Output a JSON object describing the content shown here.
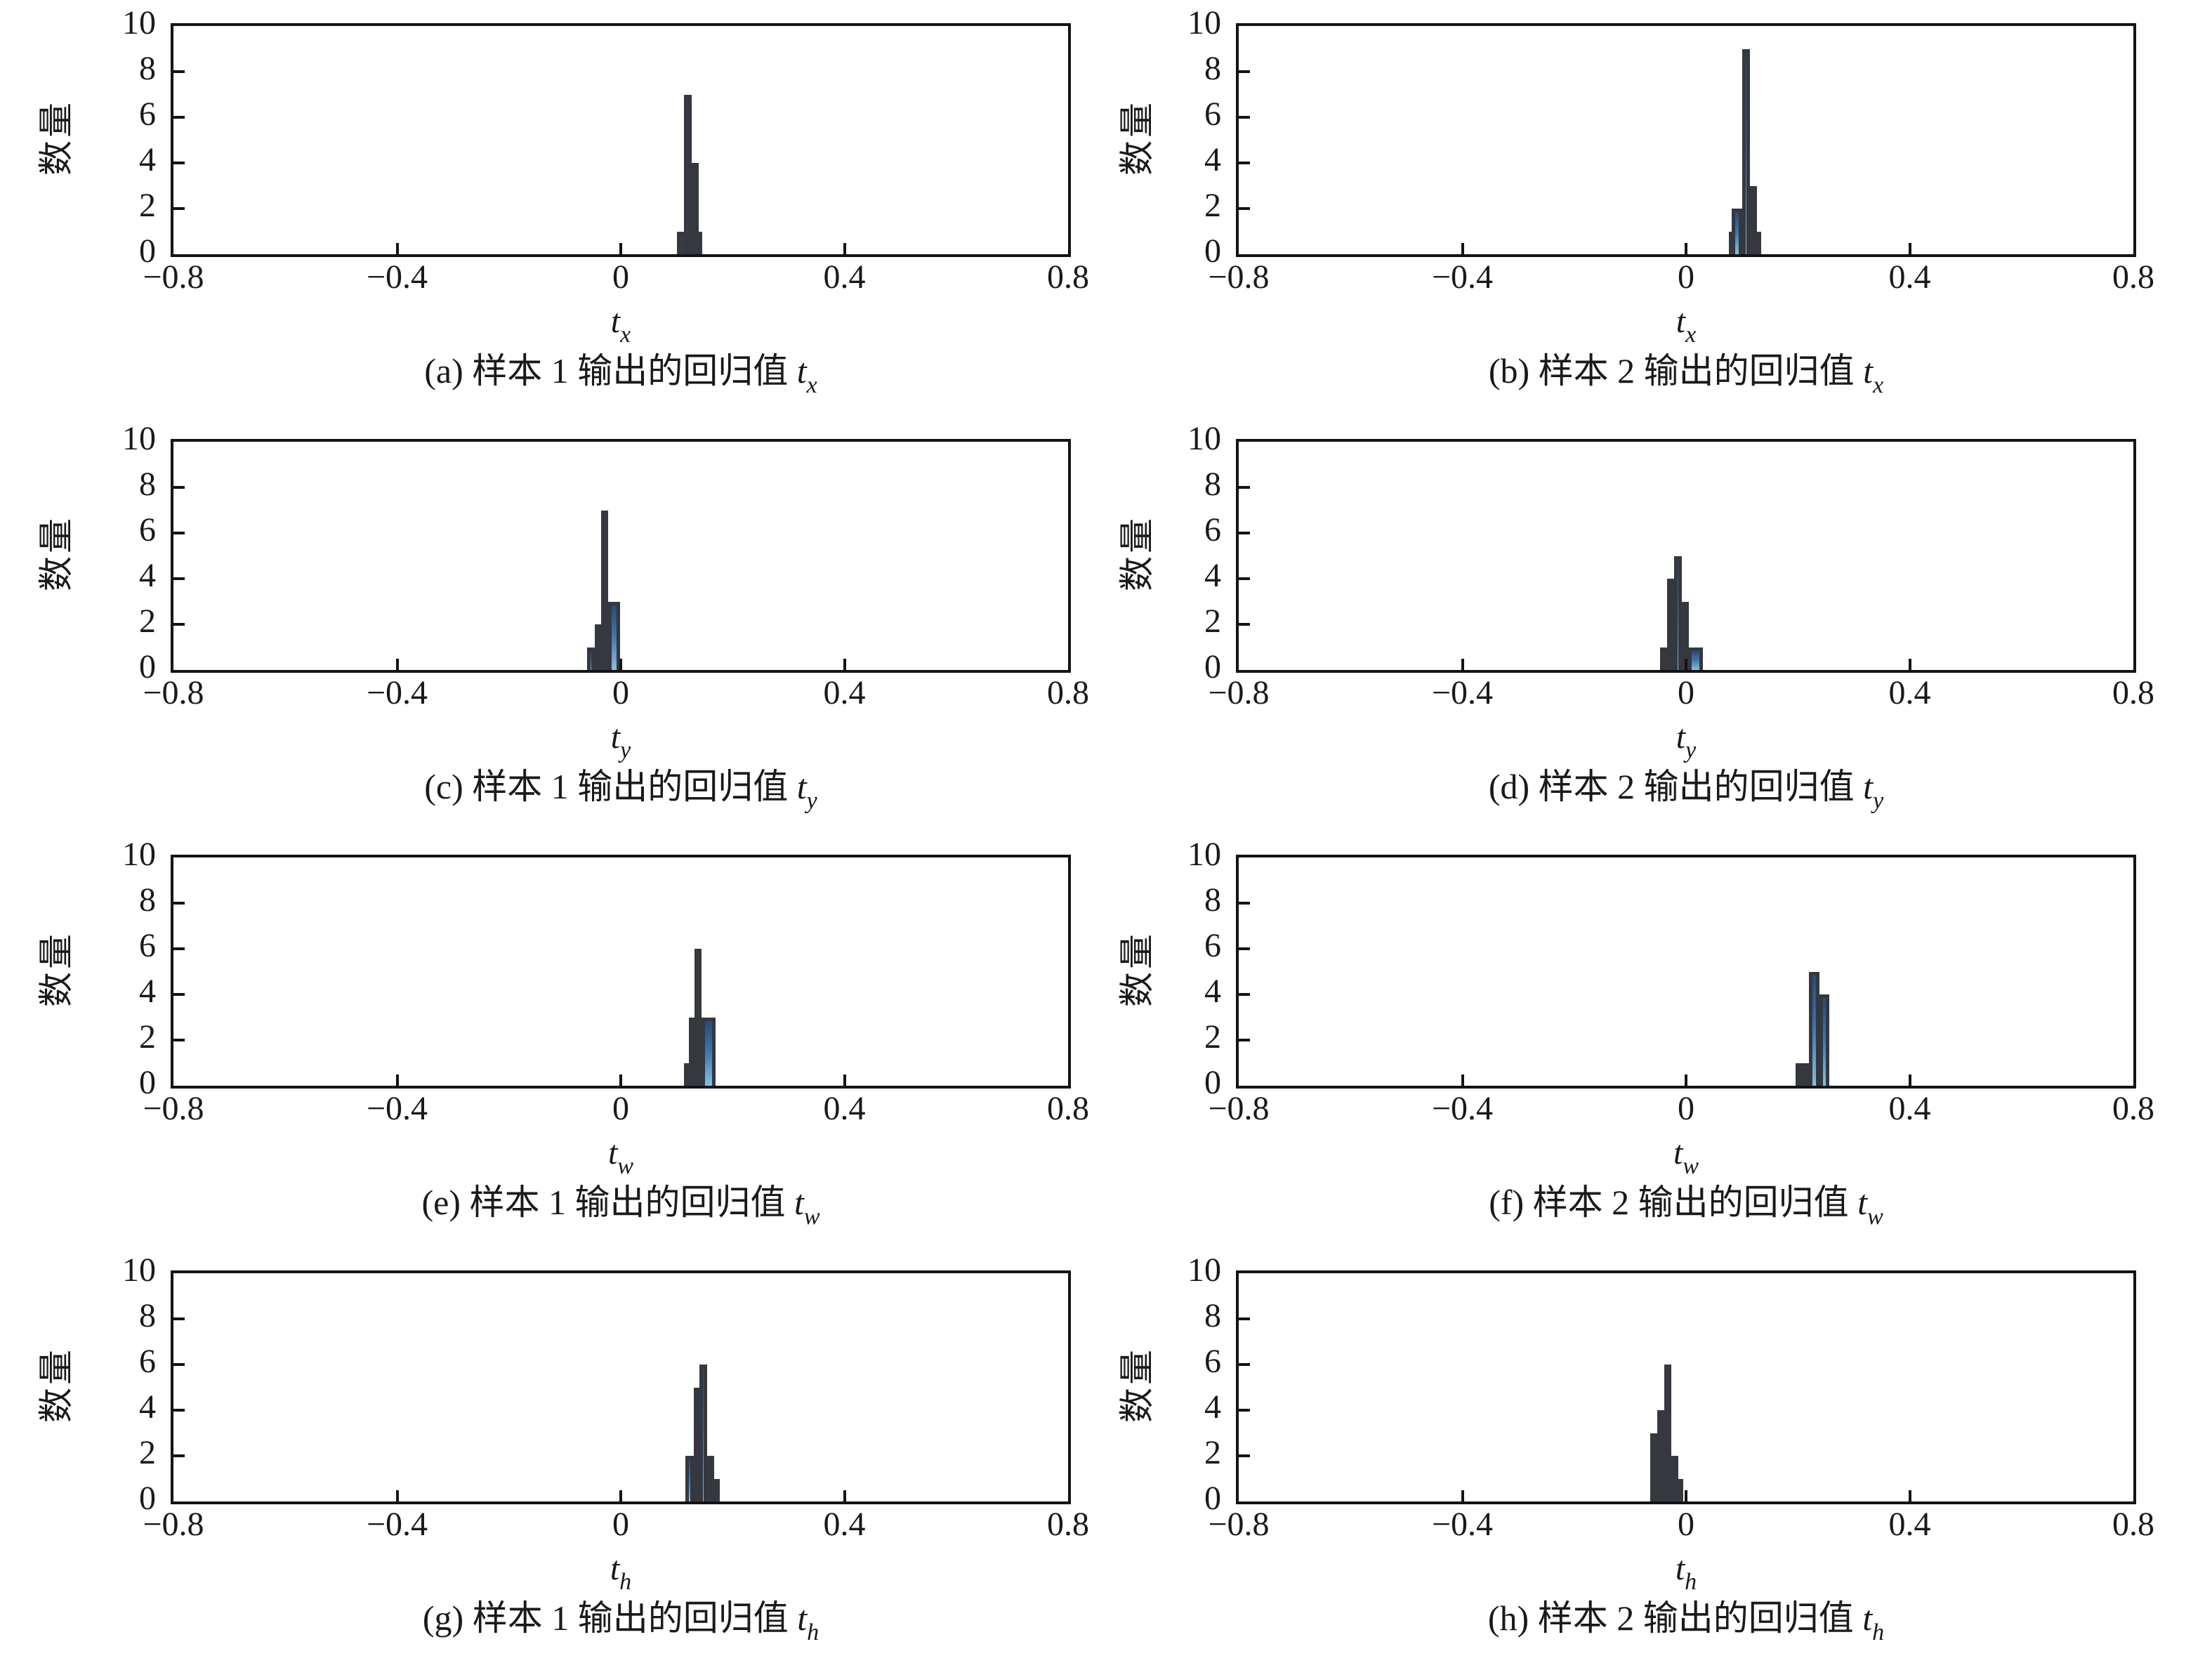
{
  "figure": {
    "ylabel": "数量",
    "xtick_labels": [
      "−0.8",
      "−0.4",
      "0",
      "0.4",
      "0.8"
    ],
    "ytick_labels": [
      "0",
      "2",
      "4",
      "6",
      "8",
      "10"
    ],
    "colors": {
      "axis": "#141414",
      "bar_edge": "#35383f",
      "bar_fill_top": "#2b4a74",
      "bar_fill_mid": "#3e71a8",
      "bar_fill_bottom": "#87c0de",
      "bar_dark": "#383b42"
    }
  },
  "chart_data": [
    {
      "type": "bar",
      "panel": "a",
      "caption_prefix": "(a) 样本 1 输出的回归值 ",
      "xlabel_base": "t",
      "xlabel_sub": "x",
      "ylabel": "数量",
      "xlim": [
        -0.8,
        0.8
      ],
      "ylim": [
        0,
        10
      ],
      "xticks": [
        -0.8,
        -0.4,
        0,
        0.4,
        0.8
      ],
      "yticks": [
        0,
        2,
        4,
        6,
        8,
        10
      ],
      "dark_bars": true,
      "bars": [
        {
          "x": 0.1,
          "w": 0.046,
          "h": 1
        },
        {
          "x": 0.113,
          "w": 0.014,
          "h": 7
        },
        {
          "x": 0.127,
          "w": 0.006,
          "h": 4
        }
      ]
    },
    {
      "type": "bar",
      "panel": "b",
      "caption_prefix": "(b) 样本 2 输出的回归值 ",
      "xlabel_base": "t",
      "xlabel_sub": "x",
      "ylabel": "数量",
      "xlim": [
        -0.8,
        0.8
      ],
      "ylim": [
        0,
        10
      ],
      "xticks": [
        -0.8,
        -0.4,
        0,
        0.4,
        0.8
      ],
      "yticks": [
        0,
        2,
        4,
        6,
        8,
        10
      ],
      "dark_bars": false,
      "bars": [
        {
          "x": 0.077,
          "w": 0.005,
          "h": 1
        },
        {
          "x": 0.082,
          "w": 0.018,
          "h": 2
        },
        {
          "x": 0.1,
          "w": 0.014,
          "h": 9
        },
        {
          "x": 0.114,
          "w": 0.008,
          "h": 3
        },
        {
          "x": 0.122,
          "w": 0.012,
          "h": 1
        }
      ]
    },
    {
      "type": "bar",
      "panel": "c",
      "caption_prefix": "(c) 样本 1 输出的回归值 ",
      "xlabel_base": "t",
      "xlabel_sub": "y",
      "ylabel": "数量",
      "xlim": [
        -0.8,
        0.8
      ],
      "ylim": [
        0,
        10
      ],
      "xticks": [
        -0.8,
        -0.4,
        0,
        0.4,
        0.8
      ],
      "yticks": [
        0,
        2,
        4,
        6,
        8,
        10
      ],
      "dark_bars": false,
      "bars": [
        {
          "x": -0.06,
          "w": 0.013,
          "h": 1
        },
        {
          "x": -0.047,
          "w": 0.012,
          "h": 2
        },
        {
          "x": -0.035,
          "w": 0.013,
          "h": 7
        },
        {
          "x": -0.022,
          "w": 0.021,
          "h": 3
        }
      ]
    },
    {
      "type": "bar",
      "panel": "d",
      "caption_prefix": "(d) 样本 2 输出的回归值 ",
      "xlabel_base": "t",
      "xlabel_sub": "y",
      "ylabel": "数量",
      "xlim": [
        -0.8,
        0.8
      ],
      "ylim": [
        0,
        10
      ],
      "xticks": [
        -0.8,
        -0.4,
        0,
        0.4,
        0.8
      ],
      "yticks": [
        0,
        2,
        4,
        6,
        8,
        10
      ],
      "dark_bars": false,
      "bars": [
        {
          "x": -0.046,
          "w": 0.012,
          "h": 1
        },
        {
          "x": -0.034,
          "w": 0.013,
          "h": 4
        },
        {
          "x": -0.021,
          "w": 0.013,
          "h": 5
        },
        {
          "x": -0.008,
          "w": 0.012,
          "h": 3
        },
        {
          "x": 0.004,
          "w": 0.026,
          "h": 1
        }
      ]
    },
    {
      "type": "bar",
      "panel": "e",
      "caption_prefix": "(e) 样本 1 输出的回归值 ",
      "xlabel_base": "t",
      "xlabel_sub": "w",
      "ylabel": "数量",
      "xlim": [
        -0.8,
        0.8
      ],
      "ylim": [
        0,
        10
      ],
      "xticks": [
        -0.8,
        -0.4,
        0,
        0.4,
        0.8
      ],
      "yticks": [
        0,
        2,
        4,
        6,
        8,
        10
      ],
      "dark_bars": false,
      "bars": [
        {
          "x": 0.113,
          "w": 0.009,
          "h": 1
        },
        {
          "x": 0.122,
          "w": 0.01,
          "h": 3
        },
        {
          "x": 0.132,
          "w": 0.012,
          "h": 6
        },
        {
          "x": 0.144,
          "w": 0.025,
          "h": 3
        }
      ]
    },
    {
      "type": "bar",
      "panel": "f",
      "caption_prefix": "(f) 样本 2 输出的回归值 ",
      "xlabel_base": "t",
      "xlabel_sub": "w",
      "ylabel": "数量",
      "xlim": [
        -0.8,
        0.8
      ],
      "ylim": [
        0,
        10
      ],
      "xticks": [
        -0.8,
        -0.4,
        0,
        0.4,
        0.8
      ],
      "yticks": [
        0,
        2,
        4,
        6,
        8,
        10
      ],
      "dark_bars": false,
      "bars": [
        {
          "x": 0.196,
          "w": 0.012,
          "h": 1
        },
        {
          "x": 0.208,
          "w": 0.012,
          "h": 1
        },
        {
          "x": 0.22,
          "w": 0.019,
          "h": 5
        },
        {
          "x": 0.239,
          "w": 0.017,
          "h": 4
        }
      ]
    },
    {
      "type": "bar",
      "panel": "g",
      "caption_prefix": "(g) 样本 1 输出的回归值 ",
      "xlabel_base": "t",
      "xlabel_sub": "h",
      "ylabel": "数量",
      "xlim": [
        -0.8,
        0.8
      ],
      "ylim": [
        0,
        10
      ],
      "xticks": [
        -0.8,
        -0.4,
        0,
        0.4,
        0.8
      ],
      "yticks": [
        0,
        2,
        4,
        6,
        8,
        10
      ],
      "dark_bars": false,
      "bars": [
        {
          "x": 0.116,
          "w": 0.015,
          "h": 2
        },
        {
          "x": 0.131,
          "w": 0.01,
          "h": 5
        },
        {
          "x": 0.141,
          "w": 0.013,
          "h": 6
        },
        {
          "x": 0.154,
          "w": 0.011,
          "h": 2
        },
        {
          "x": 0.165,
          "w": 0.008,
          "h": 1
        }
      ]
    },
    {
      "type": "bar",
      "panel": "h",
      "caption_prefix": "(h) 样本 2 输出的回归值 ",
      "xlabel_base": "t",
      "xlabel_sub": "h",
      "ylabel": "数量",
      "xlim": [
        -0.8,
        0.8
      ],
      "ylim": [
        0,
        10
      ],
      "xticks": [
        -0.8,
        -0.4,
        0,
        0.4,
        0.8
      ],
      "yticks": [
        0,
        2,
        4,
        6,
        8,
        10
      ],
      "dark_bars": false,
      "bars": [
        {
          "x": -0.064,
          "w": 0.012,
          "h": 3
        },
        {
          "x": -0.052,
          "w": 0.013,
          "h": 4
        },
        {
          "x": -0.039,
          "w": 0.013,
          "h": 6
        },
        {
          "x": -0.026,
          "w": 0.008,
          "h": 2
        },
        {
          "x": -0.018,
          "w": 0.01,
          "h": 1
        }
      ]
    }
  ]
}
